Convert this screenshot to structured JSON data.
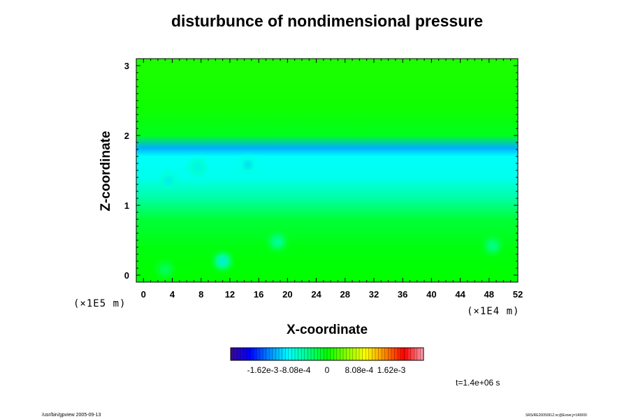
{
  "chart_data": {
    "type": "heatmap",
    "title": "disturbunce of nondimensional pressure",
    "xlabel": "X-coordinate",
    "ylabel": "Z-coordinate",
    "x_scale_label": "(×1E4 m)",
    "y_scale_label": "(×1E5 m)",
    "xlim": [
      -1,
      52
    ],
    "ylim": [
      -0.1,
      3.1
    ],
    "x_ticks": [
      "0",
      "4",
      "8",
      "12",
      "16",
      "20",
      "24",
      "28",
      "32",
      "36",
      "40",
      "44",
      "48",
      "52"
    ],
    "y_ticks": [
      "0",
      "1",
      "2",
      "3"
    ],
    "colorbar": {
      "tick_labels": [
        "-1.62e-3",
        "-8.08e-4",
        "0",
        "8.08e-4",
        "1.62e-3"
      ],
      "tick_values": [
        -0.00162,
        -0.000808,
        0,
        0.000808,
        0.00162
      ],
      "range": [
        -0.00243,
        0.00243
      ],
      "colors": [
        "#3a0a8c",
        "#0000ff",
        "#0088ff",
        "#00ffff",
        "#00ff88",
        "#00ff00",
        "#88ff00",
        "#ffff00",
        "#ff8800",
        "#ff0000",
        "#ffa0b0"
      ]
    },
    "field_summary": [
      {
        "z": 3.0,
        "value": 0.0001
      },
      {
        "z": 2.4,
        "value": 5e-05
      },
      {
        "z": 2.0,
        "value": -0.0001
      },
      {
        "z": 1.82,
        "value": -0.0013
      },
      {
        "z": 1.7,
        "value": -0.00095
      },
      {
        "z": 1.4,
        "value": -0.0009
      },
      {
        "z": 1.1,
        "value": -0.0006
      },
      {
        "z": 0.8,
        "value": -0.0002
      },
      {
        "z": 0.4,
        "value": -5e-05
      },
      {
        "z": 0.0,
        "value": 0.0
      }
    ],
    "local_minima": [
      {
        "x": 11,
        "z": 0.2,
        "value": -0.0011
      },
      {
        "x": 18.6,
        "z": 0.48,
        "value": -0.0007
      },
      {
        "x": 48.5,
        "z": 0.42,
        "value": -0.0006
      },
      {
        "x": 3,
        "z": 0.08,
        "value": -0.0004
      },
      {
        "x": 14.5,
        "z": 1.58,
        "value": -0.0012
      },
      {
        "x": 7.5,
        "z": 1.55,
        "value": -0.00105
      },
      {
        "x": 3.5,
        "z": 1.35,
        "value": -0.0011
      }
    ]
  },
  "time_label": "t=1.4e+06 s",
  "footer_left": "/usr/bin/gpview 2005-09-13",
  "footer_right": "SRS/RE2005091Z.nc@Exner,j=140000"
}
